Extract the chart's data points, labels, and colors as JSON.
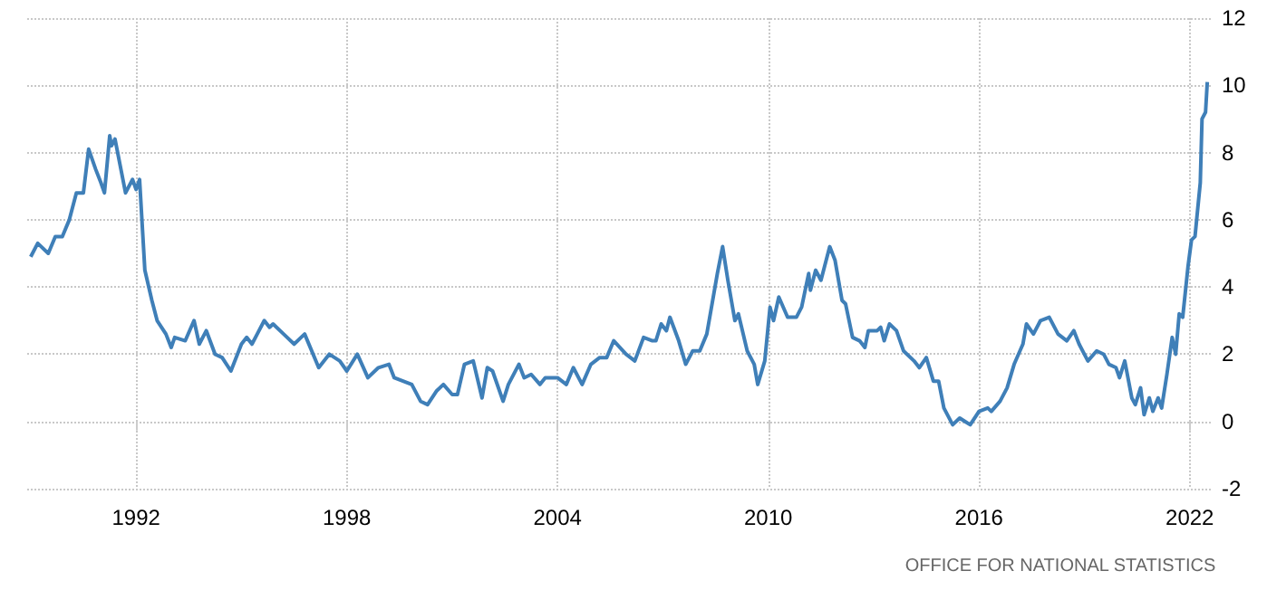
{
  "chart_data": {
    "type": "line",
    "x": [
      1989.0,
      1989.2,
      1989.5,
      1989.7,
      1989.9,
      1990.1,
      1990.3,
      1990.5,
      1990.65,
      1990.85,
      1991.0,
      1991.1,
      1991.25,
      1991.3,
      1991.4,
      1991.7,
      1991.9,
      1992.0,
      1992.1,
      1992.25,
      1992.45,
      1992.6,
      1992.85,
      1993.0,
      1993.1,
      1993.4,
      1993.65,
      1993.8,
      1994.0,
      1994.25,
      1994.45,
      1994.7,
      1995.0,
      1995.15,
      1995.3,
      1995.45,
      1995.65,
      1995.8,
      1995.9,
      1996.2,
      1996.5,
      1996.8,
      1997.2,
      1997.5,
      1997.8,
      1998.0,
      1998.3,
      1998.6,
      1998.9,
      1999.2,
      1999.35,
      1999.85,
      2000.1,
      2000.3,
      2000.55,
      2000.75,
      2001.0,
      2001.15,
      2001.35,
      2001.6,
      2001.85,
      2002.0,
      2002.15,
      2002.45,
      2002.6,
      2002.9,
      2003.05,
      2003.25,
      2003.5,
      2003.65,
      2004.0,
      2004.25,
      2004.45,
      2004.7,
      2004.95,
      2005.2,
      2005.4,
      2005.6,
      2005.95,
      2006.2,
      2006.45,
      2006.7,
      2006.8,
      2006.95,
      2007.1,
      2007.2,
      2007.45,
      2007.65,
      2007.85,
      2008.05,
      2008.25,
      2008.45,
      2008.55,
      2008.7,
      2008.85,
      2009.05,
      2009.15,
      2009.4,
      2009.6,
      2009.7,
      2009.9,
      2010.05,
      2010.15,
      2010.3,
      2010.55,
      2010.8,
      2010.95,
      2011.15,
      2011.2,
      2011.35,
      2011.5,
      2011.75,
      2011.9,
      2012.1,
      2012.2,
      2012.4,
      2012.6,
      2012.75,
      2012.85,
      2013.1,
      2013.2,
      2013.3,
      2013.45,
      2013.65,
      2013.85,
      2014.15,
      2014.3,
      2014.5,
      2014.7,
      2014.85,
      2015.0,
      2015.25,
      2015.45,
      2015.6,
      2015.75,
      2016.0,
      2016.25,
      2016.35,
      2016.6,
      2016.8,
      2017.0,
      2017.25,
      2017.35,
      2017.55,
      2017.75,
      2018.0,
      2018.25,
      2018.5,
      2018.7,
      2018.85,
      2019.1,
      2019.35,
      2019.55,
      2019.7,
      2019.9,
      2020.0,
      2020.15,
      2020.35,
      2020.45,
      2020.6,
      2020.7,
      2020.85,
      2020.95,
      2021.1,
      2021.2,
      2021.35,
      2021.5,
      2021.6,
      2021.7,
      2021.8,
      2021.95,
      2022.05,
      2022.15,
      2022.3,
      2022.35,
      2022.45,
      2022.5
    ],
    "series": [
      {
        "color": "#3f7fb8",
        "values": [
          4.9,
          5.3,
          5.0,
          5.5,
          5.5,
          6.0,
          6.8,
          6.8,
          8.1,
          7.5,
          7.1,
          6.8,
          8.5,
          8.2,
          8.4,
          6.8,
          7.2,
          6.9,
          7.2,
          4.5,
          3.6,
          3.0,
          2.6,
          2.2,
          2.5,
          2.4,
          3.0,
          2.3,
          2.7,
          2.0,
          1.9,
          1.5,
          2.3,
          2.5,
          2.3,
          2.6,
          3.0,
          2.8,
          2.9,
          2.6,
          2.3,
          2.6,
          1.6,
          2.0,
          1.8,
          1.5,
          2.0,
          1.3,
          1.6,
          1.7,
          1.3,
          1.1,
          0.6,
          0.5,
          0.9,
          1.1,
          0.8,
          0.8,
          1.7,
          1.8,
          0.7,
          1.6,
          1.5,
          0.6,
          1.1,
          1.7,
          1.3,
          1.4,
          1.1,
          1.3,
          1.3,
          1.1,
          1.6,
          1.1,
          1.7,
          1.9,
          1.9,
          2.4,
          2.0,
          1.8,
          2.5,
          2.4,
          2.4,
          2.9,
          2.7,
          3.1,
          2.4,
          1.7,
          2.1,
          2.1,
          2.6,
          3.8,
          4.4,
          5.2,
          4.2,
          3.0,
          3.2,
          2.1,
          1.7,
          1.1,
          1.8,
          3.4,
          3.0,
          3.7,
          3.1,
          3.1,
          3.4,
          4.4,
          3.9,
          4.5,
          4.2,
          5.2,
          4.8,
          3.6,
          3.5,
          2.5,
          2.4,
          2.2,
          2.7,
          2.7,
          2.8,
          2.4,
          2.9,
          2.7,
          2.1,
          1.8,
          1.6,
          1.9,
          1.2,
          1.2,
          0.4,
          -0.1,
          0.1,
          0.0,
          -0.1,
          0.3,
          0.4,
          0.3,
          0.6,
          1.0,
          1.7,
          2.3,
          2.9,
          2.6,
          3.0,
          3.1,
          2.6,
          2.4,
          2.7,
          2.3,
          1.8,
          2.1,
          2.0,
          1.7,
          1.6,
          1.3,
          1.8,
          0.7,
          0.5,
          1.0,
          0.2,
          0.7,
          0.3,
          0.7,
          0.4,
          1.4,
          2.5,
          2.0,
          3.2,
          3.1,
          4.6,
          5.4,
          5.5,
          7.1,
          9.0,
          9.2,
          10.1
        ]
      }
    ],
    "xlim": [
      1988.9,
      2022.6
    ],
    "xticks": [
      1992,
      1998,
      2004,
      2010,
      2016,
      2022
    ],
    "ylim": [
      -2,
      12
    ],
    "yticks": [
      -2,
      0,
      2,
      4,
      6,
      8,
      10,
      12
    ],
    "grid": true,
    "marker": "none",
    "annotations": [
      "OFFICE FOR NATIONAL STATISTICS"
    ]
  }
}
